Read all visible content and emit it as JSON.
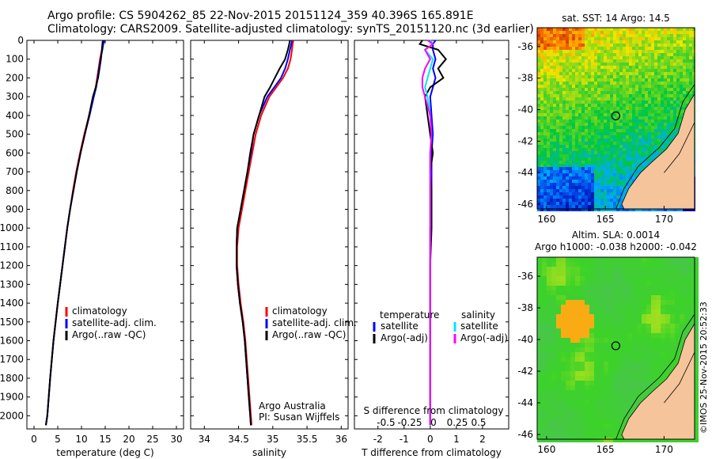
{
  "header": {
    "line1": "Argo profile: CS 5904262_85 22-Nov-2015 20151124_359 40.396S 165.891E",
    "line2": "Climatology: CARS2009. Satellite-adjusted climatology: synTS_20151120.nc (3d earlier)"
  },
  "footer": {
    "stamp": "©IMOS 25-Nov-2015 20:52:33"
  },
  "colors": {
    "climatology": "#ff0000",
    "satellite": "#0000ff",
    "argo": "#000000",
    "salinity_sat": "#00e5ff",
    "salinity_argo": "#ff00ff",
    "land": "#f5c49a"
  },
  "chart_data": [
    {
      "type": "line",
      "xlabel": "temperature (deg C)",
      "xticks": [
        0,
        5,
        10,
        15,
        20,
        25,
        30
      ],
      "xlim": [
        -1.5,
        31.5
      ],
      "ylim": [
        2070,
        0
      ],
      "yticks": [
        0,
        100,
        200,
        300,
        400,
        500,
        600,
        700,
        800,
        900,
        1000,
        1100,
        1200,
        1300,
        1400,
        1500,
        1600,
        1700,
        1800,
        1900,
        2000
      ],
      "depth": [
        0,
        20,
        50,
        100,
        150,
        200,
        250,
        300,
        400,
        500,
        600,
        700,
        800,
        900,
        1000,
        1200,
        1400,
        1600,
        1800,
        2000,
        2050
      ],
      "series": [
        {
          "name": "climatology",
          "color": "#ff0000",
          "values": [
            14.6,
            14.5,
            14.3,
            13.9,
            13.6,
            13.3,
            13.0,
            12.5,
            11.6,
            10.6,
            9.7,
            8.9,
            8.2,
            7.6,
            7.0,
            6.0,
            5.0,
            4.1,
            3.4,
            2.8,
            2.5
          ]
        },
        {
          "name": "satellite-adj. clim.",
          "color": "#0000ff",
          "values": [
            14.8,
            14.6,
            14.4,
            14.0,
            13.7,
            13.4,
            13.1,
            12.6,
            11.7,
            10.7,
            9.8,
            9.0,
            8.3,
            7.6,
            7.0,
            6.0,
            5.0,
            4.1,
            3.4,
            2.8,
            2.5
          ]
        },
        {
          "name": "Argo(..raw -QC)",
          "color": "#000000",
          "values": [
            14.5,
            14.4,
            14.3,
            14.1,
            13.8,
            13.5,
            13.0,
            12.4,
            11.6,
            10.7,
            9.8,
            9.0,
            8.3,
            7.6,
            7.0,
            6.0,
            5.0,
            4.1,
            3.4,
            2.8,
            2.5
          ]
        }
      ],
      "legend": [
        "climatology",
        "satellite-adj. clim.",
        "Argo(..raw -QC)"
      ]
    },
    {
      "type": "line",
      "xlabel": "salinity",
      "xticks": [
        34,
        34.5,
        35,
        35.5,
        36
      ],
      "xlim": [
        33.8,
        36.1
      ],
      "ylim": [
        2070,
        0
      ],
      "depth": [
        0,
        20,
        50,
        100,
        150,
        200,
        250,
        300,
        400,
        500,
        600,
        700,
        800,
        900,
        1000,
        1100,
        1200,
        1300,
        1400,
        1500,
        1600,
        1700,
        1800,
        1900,
        2000,
        2050
      ],
      "series": [
        {
          "name": "climatology",
          "color": "#ff0000",
          "values": [
            35.3,
            35.29,
            35.28,
            35.26,
            35.22,
            35.15,
            35.05,
            34.95,
            34.83,
            34.75,
            34.7,
            34.65,
            34.6,
            34.55,
            34.5,
            34.48,
            34.48,
            34.5,
            34.53,
            34.57,
            34.6,
            34.62,
            34.64,
            34.66,
            34.68,
            34.69
          ]
        },
        {
          "name": "satellite-adj. clim.",
          "color": "#0000ff",
          "values": [
            35.28,
            35.27,
            35.25,
            35.22,
            35.18,
            35.12,
            35.02,
            34.92,
            34.8,
            34.72,
            34.68,
            34.63,
            34.58,
            34.53,
            34.48,
            34.47,
            34.47,
            34.49,
            34.52,
            34.56,
            34.59,
            34.61,
            34.63,
            34.65,
            34.67,
            34.68
          ]
        },
        {
          "name": "Argo(..raw -QC)",
          "color": "#000000",
          "values": [
            35.25,
            35.24,
            35.22,
            35.18,
            35.1,
            35.03,
            34.96,
            34.88,
            34.8,
            34.72,
            34.67,
            34.63,
            34.58,
            34.53,
            34.48,
            34.47,
            34.47,
            34.49,
            34.52,
            34.56,
            34.59,
            34.61,
            34.63,
            34.65,
            34.67,
            34.68
          ]
        }
      ],
      "legend": [
        "climatology",
        "satellite-adj. clim.",
        "Argo(..raw -QC)"
      ],
      "annotation": [
        "Argo Australia",
        "PI: Susan Wijffels"
      ]
    },
    {
      "type": "line",
      "xlabel": "T difference from climatology",
      "xlabel_top": "S difference from climatology",
      "xticks": [
        -2,
        -1,
        0,
        1,
        2
      ],
      "xticks_secondary": [
        "-0.5",
        "-0.25",
        "0",
        "0.25",
        "0.5"
      ],
      "xlim": [
        -2.9,
        3.0
      ],
      "ylim": [
        2070,
        0
      ],
      "depth": [
        0,
        20,
        50,
        100,
        150,
        200,
        250,
        300,
        400,
        500,
        600,
        700,
        800,
        900,
        1000,
        1200,
        1400,
        1600,
        1800,
        2000,
        2050
      ],
      "series": [
        {
          "name": "temperature satellite",
          "color": "#0000ff",
          "values": [
            0.2,
            0.1,
            0.1,
            0.2,
            0.1,
            0.2,
            0.1,
            0.0,
            0.05,
            0.1,
            0.05,
            0.05,
            0.05,
            0.05,
            0.0,
            0.0,
            0.0,
            0.0,
            0.0,
            0.0,
            0.0
          ]
        },
        {
          "name": "temperature Argo(-adj)",
          "color": "#000000",
          "values": [
            -0.3,
            -0.4,
            0.3,
            0.6,
            0.3,
            0.5,
            0.0,
            -0.2,
            -0.1,
            0.0,
            0.1,
            0.0,
            0.05,
            0.05,
            0.05,
            0.0,
            0.0,
            0.0,
            0.0,
            0.0,
            0.0
          ]
        },
        {
          "name": "salinity satellite",
          "color": "#00e5ff",
          "values": [
            0.0,
            0.1,
            -0.2,
            0.1,
            0.0,
            -0.1,
            -0.2,
            -0.1,
            0.0,
            0.05,
            0.0,
            0.0,
            0.0,
            0.0,
            0.0,
            0.0,
            0.0,
            0.0,
            0.0,
            0.0,
            0.0
          ]
        },
        {
          "name": "salinity Argo(-adj)",
          "color": "#ff00ff",
          "values": [
            -0.1,
            0.1,
            -0.2,
            0.0,
            -0.2,
            -0.3,
            -0.3,
            -0.2,
            0.0,
            0.05,
            0.0,
            0.0,
            0.0,
            0.0,
            0.0,
            0.0,
            0.0,
            0.0,
            0.0,
            0.0,
            0.0
          ]
        }
      ],
      "legend": {
        "temperature": [
          "satellite",
          "Argo(-adj)"
        ],
        "salinity": [
          "satellite",
          "Argo(-adj)"
        ],
        "headers": [
          "temperature",
          "salinity"
        ]
      }
    },
    {
      "type": "heatmap",
      "title": "sat. SST: 14  Argo: 14.5",
      "xticks": [
        160,
        165,
        170
      ],
      "yticks": [
        -36,
        -38,
        -40,
        -42,
        -44,
        -46
      ],
      "xlim": [
        159.2,
        172.6
      ],
      "ylim": [
        -46.3,
        -34.8
      ],
      "marker": {
        "lon": 165.891,
        "lat": -40.396
      }
    },
    {
      "type": "heatmap",
      "title_lines": [
        "Altim. SLA: 0.0014",
        "Argo h1000: -0.038 h2000: -0.042"
      ],
      "xticks": [
        160,
        165,
        170
      ],
      "yticks": [
        -36,
        -38,
        -40,
        -42,
        -44,
        -46
      ],
      "xlim": [
        159.2,
        172.6
      ],
      "ylim": [
        -46.3,
        -34.8
      ],
      "marker": {
        "lon": 165.891,
        "lat": -40.396
      }
    }
  ]
}
